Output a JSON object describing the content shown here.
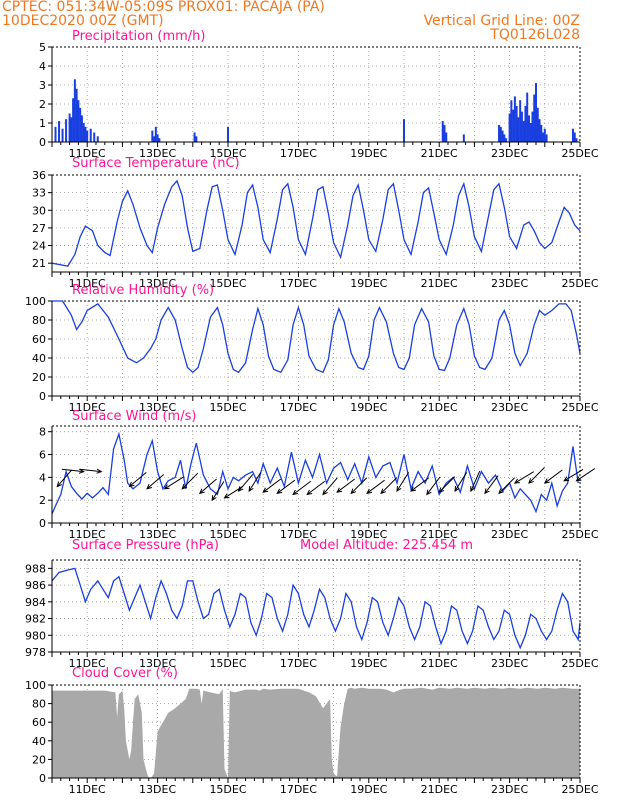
{
  "header": {
    "line1": "CPTEC:   051:34W-05:09S   PROX01: PACAJA (PA)",
    "line2_left": "10DEC2020 00Z (GMT)",
    "line2_right": "Vertical Grid Line: 00Z",
    "line3_right": "TQ0126L028"
  },
  "colors": {
    "header": "#f07820",
    "panel_title": "#ff1493",
    "series": "#1a3fe0",
    "cloud": "#a9a9a9",
    "axis": "#000000"
  },
  "x_axis": {
    "start_day": 10,
    "end_day": 25,
    "tick_labels": [
      "11DEC",
      "13DEC",
      "15DEC",
      "17DEC",
      "19DEC",
      "21DEC",
      "23DEC",
      "25DEC"
    ],
    "tick_days": [
      11,
      13,
      15,
      17,
      19,
      21,
      23,
      25
    ]
  },
  "chart_data": [
    {
      "id": "precip",
      "type": "bar",
      "title": "Precipitation (mm/h)",
      "ylim": [
        0,
        5
      ],
      "yticks": [
        0,
        1,
        2,
        3,
        4,
        5
      ],
      "grid": true,
      "unit": "mm/h",
      "x": [
        10.1,
        10.2,
        10.3,
        10.4,
        10.5,
        10.55,
        10.6,
        10.65,
        10.7,
        10.75,
        10.8,
        10.85,
        10.9,
        10.95,
        11.0,
        11.1,
        11.2,
        11.3,
        12.85,
        12.9,
        12.95,
        13.0,
        13.05,
        14.05,
        14.1,
        15.0,
        20.0,
        21.1,
        21.15,
        21.2,
        21.7,
        22.7,
        22.75,
        22.8,
        22.85,
        22.9,
        23.0,
        23.05,
        23.1,
        23.15,
        23.2,
        23.25,
        23.3,
        23.35,
        23.4,
        23.45,
        23.5,
        23.55,
        23.6,
        23.65,
        23.7,
        23.75,
        23.8,
        23.85,
        23.9,
        23.95,
        24.0,
        24.05,
        24.8,
        24.85,
        24.9
      ],
      "values": [
        0.8,
        1.1,
        0.7,
        1.2,
        1.5,
        1.3,
        2.3,
        3.3,
        2.8,
        2.2,
        1.8,
        1.4,
        1.0,
        0.8,
        0.6,
        0.7,
        0.5,
        0.3,
        0.6,
        0.3,
        0.8,
        0.4,
        0.2,
        0.5,
        0.3,
        0.8,
        1.2,
        1.1,
        0.9,
        0.5,
        0.4,
        0.9,
        0.8,
        0.6,
        0.4,
        0.2,
        1.5,
        2.2,
        1.7,
        2.4,
        1.9,
        1.3,
        2.2,
        1.6,
        1.1,
        1.9,
        2.6,
        1.4,
        1.0,
        1.6,
        2.5,
        3.1,
        1.8,
        1.2,
        0.9,
        0.5,
        0.7,
        0.4,
        0.7,
        0.5,
        0.2
      ]
    },
    {
      "id": "temp",
      "type": "line",
      "title": "Surface Temperature (nC)",
      "ylim": [
        19.5,
        36
      ],
      "yticks": [
        21,
        24,
        27,
        30,
        33,
        36
      ],
      "grid": true,
      "unit": "nC",
      "x": [
        10.0,
        10.45,
        10.65,
        10.8,
        10.95,
        11.15,
        11.3,
        11.5,
        11.65,
        11.85,
        12.0,
        12.15,
        12.3,
        12.5,
        12.7,
        12.85,
        13.0,
        13.2,
        13.4,
        13.55,
        13.7,
        13.85,
        14.0,
        14.2,
        14.4,
        14.55,
        14.7,
        14.85,
        15.0,
        15.2,
        15.4,
        15.55,
        15.7,
        15.85,
        16.0,
        16.2,
        16.4,
        16.55,
        16.7,
        16.85,
        17.0,
        17.2,
        17.4,
        17.55,
        17.7,
        17.85,
        18.0,
        18.2,
        18.4,
        18.55,
        18.7,
        18.85,
        19.0,
        19.2,
        19.4,
        19.55,
        19.7,
        19.85,
        20.0,
        20.2,
        20.4,
        20.55,
        20.7,
        20.85,
        21.0,
        21.2,
        21.4,
        21.55,
        21.7,
        21.85,
        22.0,
        22.2,
        22.4,
        22.55,
        22.7,
        22.85,
        23.0,
        23.2,
        23.4,
        23.55,
        23.7,
        23.85,
        24.0,
        24.2,
        24.4,
        24.55,
        24.7,
        24.85,
        25.0
      ],
      "values": [
        21.0,
        20.5,
        22.5,
        25.5,
        27.3,
        26.5,
        24.0,
        22.8,
        22.3,
        28.0,
        31.5,
        33.3,
        31.0,
        27.0,
        24.0,
        22.8,
        27.0,
        31.0,
        34.0,
        35.0,
        32.5,
        27.0,
        23.0,
        23.5,
        30.0,
        34.0,
        34.3,
        30.0,
        25.0,
        22.5,
        27.5,
        33.0,
        34.3,
        30.5,
        25.0,
        22.8,
        28.5,
        33.5,
        34.5,
        30.5,
        25.0,
        22.5,
        28.5,
        33.5,
        34.0,
        29.5,
        24.5,
        22.0,
        27.5,
        32.5,
        34.3,
        30.0,
        25.0,
        23.0,
        28.5,
        33.5,
        34.5,
        30.0,
        25.0,
        22.5,
        28.0,
        33.0,
        33.8,
        29.5,
        25.0,
        22.5,
        27.5,
        32.5,
        34.5,
        30.5,
        25.5,
        23.0,
        29.0,
        33.5,
        34.5,
        30.5,
        25.5,
        23.5,
        27.5,
        28.0,
        26.5,
        24.5,
        23.5,
        24.5,
        28.0,
        30.5,
        29.5,
        27.5,
        26.5
      ]
    },
    {
      "id": "rh",
      "type": "line",
      "title": "Relative Humidity (%)",
      "ylim": [
        0,
        100
      ],
      "yticks": [
        0,
        20,
        40,
        60,
        80,
        100
      ],
      "grid": true,
      "unit": "%",
      "x": [
        10.0,
        10.3,
        10.55,
        10.7,
        10.85,
        11.0,
        11.3,
        11.6,
        11.9,
        12.15,
        12.4,
        12.6,
        12.8,
        12.95,
        13.1,
        13.3,
        13.5,
        13.7,
        13.85,
        14.0,
        14.15,
        14.3,
        14.5,
        14.7,
        14.85,
        15.0,
        15.15,
        15.3,
        15.5,
        15.7,
        15.85,
        16.0,
        16.15,
        16.3,
        16.5,
        16.7,
        16.85,
        17.0,
        17.15,
        17.3,
        17.5,
        17.7,
        17.85,
        18.0,
        18.15,
        18.3,
        18.5,
        18.7,
        18.85,
        19.0,
        19.15,
        19.3,
        19.5,
        19.7,
        19.85,
        20.0,
        20.15,
        20.3,
        20.5,
        20.7,
        20.85,
        21.0,
        21.15,
        21.3,
        21.5,
        21.7,
        21.85,
        22.0,
        22.15,
        22.3,
        22.5,
        22.7,
        22.85,
        23.0,
        23.15,
        23.3,
        23.5,
        23.7,
        23.85,
        24.0,
        24.2,
        24.4,
        24.6,
        24.75,
        24.9,
        25.0
      ],
      "values": [
        100,
        100,
        85,
        70,
        78,
        90,
        97,
        83,
        60,
        40,
        35,
        40,
        50,
        60,
        80,
        93,
        80,
        50,
        30,
        25,
        30,
        50,
        83,
        93,
        75,
        45,
        28,
        25,
        35,
        70,
        92,
        75,
        42,
        28,
        25,
        38,
        75,
        93,
        75,
        42,
        28,
        25,
        38,
        75,
        92,
        78,
        45,
        30,
        28,
        42,
        80,
        93,
        78,
        45,
        30,
        28,
        40,
        75,
        92,
        78,
        42,
        28,
        27,
        40,
        75,
        92,
        75,
        42,
        30,
        28,
        40,
        80,
        90,
        75,
        45,
        32,
        45,
        75,
        90,
        85,
        90,
        97,
        97,
        90,
        65,
        45
      ]
    },
    {
      "id": "wind",
      "type": "line",
      "title": "Surface Wind (m/s)",
      "ylim": [
        0,
        8.5
      ],
      "yticks": [
        0,
        2,
        4,
        6,
        8
      ],
      "grid": true,
      "unit": "m/s",
      "x": [
        10.0,
        10.1,
        10.25,
        10.4,
        10.55,
        10.7,
        10.85,
        11.0,
        11.15,
        11.3,
        11.45,
        11.6,
        11.75,
        11.9,
        12.05,
        12.15,
        12.3,
        12.5,
        12.7,
        12.85,
        13.0,
        13.15,
        13.3,
        13.5,
        13.65,
        13.8,
        13.95,
        14.1,
        14.3,
        14.5,
        14.7,
        14.85,
        15.0,
        15.15,
        15.3,
        15.5,
        15.7,
        15.85,
        16.0,
        16.2,
        16.4,
        16.6,
        16.8,
        17.0,
        17.2,
        17.4,
        17.6,
        17.8,
        18.0,
        18.2,
        18.4,
        18.6,
        18.8,
        19.0,
        19.2,
        19.4,
        19.6,
        19.8,
        20.0,
        20.2,
        20.4,
        20.6,
        20.8,
        21.0,
        21.2,
        21.4,
        21.6,
        21.8,
        22.0,
        22.2,
        22.4,
        22.6,
        22.8,
        23.0,
        23.15,
        23.3,
        23.45,
        23.6,
        23.75,
        23.9,
        24.05,
        24.2,
        24.35,
        24.5,
        24.65,
        24.8,
        24.95
      ],
      "values": [
        0.8,
        1.5,
        2.5,
        4.5,
        3.2,
        2.6,
        2.1,
        2.6,
        2.2,
        2.6,
        3.1,
        2.5,
        6.5,
        7.8,
        5.5,
        3.5,
        3.0,
        3.5,
        6.0,
        7.2,
        4.5,
        3.0,
        3.7,
        4.0,
        5.5,
        3.0,
        5.2,
        7.0,
        4.2,
        3.0,
        2.5,
        4.5,
        3.0,
        4.0,
        3.7,
        4.2,
        4.5,
        3.5,
        5.2,
        3.5,
        4.8,
        3.2,
        6.2,
        3.5,
        5.5,
        4.0,
        6.0,
        3.5,
        4.8,
        5.3,
        3.8,
        5.2,
        3.5,
        5.8,
        4.0,
        5.0,
        5.3,
        3.5,
        6.0,
        3.0,
        4.5,
        3.5,
        5.0,
        2.5,
        3.5,
        4.0,
        2.7,
        5.0,
        3.0,
        4.5,
        3.5,
        4.2,
        2.8,
        3.5,
        2.2,
        3.0,
        2.5,
        2.0,
        1.0,
        2.5,
        2.0,
        3.5,
        1.5,
        2.8,
        3.5,
        6.7,
        3.5
      ]
    },
    {
      "id": "pres",
      "type": "line",
      "title": "Surface Pressure (hPa)",
      "subtitle": "Model Altitude: 225.454 m",
      "ylim": [
        978,
        989
      ],
      "yticks": [
        978,
        980,
        982,
        984,
        986,
        988
      ],
      "grid": true,
      "unit": "hPa",
      "x": [
        10.0,
        10.2,
        10.45,
        10.65,
        10.8,
        10.95,
        11.1,
        11.3,
        11.45,
        11.6,
        11.75,
        11.9,
        12.05,
        12.2,
        12.35,
        12.5,
        12.65,
        12.8,
        12.95,
        13.1,
        13.25,
        13.4,
        13.55,
        13.7,
        13.85,
        14.0,
        14.15,
        14.3,
        14.45,
        14.6,
        14.75,
        14.9,
        15.05,
        15.2,
        15.35,
        15.5,
        15.65,
        15.8,
        15.95,
        16.1,
        16.25,
        16.4,
        16.55,
        16.7,
        16.85,
        17.0,
        17.15,
        17.3,
        17.45,
        17.6,
        17.75,
        17.9,
        18.05,
        18.2,
        18.35,
        18.5,
        18.65,
        18.8,
        18.95,
        19.1,
        19.25,
        19.4,
        19.55,
        19.7,
        19.85,
        20.0,
        20.15,
        20.3,
        20.45,
        20.6,
        20.75,
        20.9,
        21.05,
        21.2,
        21.35,
        21.5,
        21.65,
        21.8,
        21.95,
        22.1,
        22.25,
        22.4,
        22.55,
        22.7,
        22.85,
        23.0,
        23.15,
        23.3,
        23.45,
        23.6,
        23.75,
        23.9,
        24.05,
        24.2,
        24.35,
        24.5,
        24.65,
        24.8,
        24.95,
        25.0
      ],
      "values": [
        986.5,
        987.5,
        987.8,
        988.0,
        986.0,
        984.0,
        985.5,
        986.5,
        985.5,
        984.5,
        986.5,
        987.0,
        985.0,
        983.0,
        984.5,
        986.0,
        984.0,
        982.0,
        984.5,
        986.5,
        985.0,
        983.0,
        982.0,
        983.5,
        986.5,
        986.5,
        984.0,
        982.0,
        982.5,
        985.0,
        985.5,
        983.0,
        981.0,
        982.5,
        985.0,
        984.5,
        981.5,
        980.0,
        982.0,
        985.0,
        984.5,
        982.0,
        980.5,
        982.5,
        986.0,
        985.0,
        982.5,
        981.0,
        983.0,
        985.5,
        984.5,
        982.0,
        980.5,
        982.0,
        985.0,
        984.0,
        981.0,
        979.5,
        981.5,
        984.5,
        984.0,
        981.5,
        980.0,
        982.0,
        984.5,
        983.5,
        981.0,
        979.5,
        981.0,
        984.0,
        983.5,
        981.0,
        979.0,
        980.5,
        983.5,
        983.0,
        980.5,
        979.0,
        980.5,
        983.5,
        983.0,
        981.0,
        979.5,
        980.5,
        983.0,
        982.5,
        980.0,
        978.5,
        980.0,
        982.5,
        982.0,
        980.5,
        979.5,
        980.5,
        983.0,
        985.0,
        984.0,
        980.5,
        979.5,
        981.5
      ]
    },
    {
      "id": "cloud",
      "type": "area",
      "title": "Cloud Cover (%)",
      "ylim": [
        0,
        100
      ],
      "yticks": [
        0,
        20,
        40,
        60,
        80,
        100
      ],
      "grid": true,
      "unit": "%",
      "x": [
        10.0,
        10.5,
        11.0,
        11.5,
        11.8,
        11.85,
        11.9,
        12.0,
        12.05,
        12.1,
        12.2,
        12.25,
        12.3,
        12.35,
        12.45,
        12.55,
        12.6,
        12.7,
        12.75,
        12.8,
        12.85,
        12.9,
        13.0,
        13.3,
        13.5,
        13.8,
        13.9,
        14.1,
        14.2,
        14.25,
        14.3,
        14.5,
        14.75,
        14.85,
        14.9,
        15.0,
        15.05,
        15.1,
        15.2,
        15.5,
        15.8,
        15.9,
        16.0,
        16.2,
        16.5,
        16.8,
        17.0,
        17.3,
        17.5,
        17.7,
        17.9,
        17.95,
        18.0,
        18.05,
        18.1,
        18.15,
        18.2,
        18.3,
        18.4,
        18.5,
        18.6,
        18.8,
        19.0,
        19.3,
        19.5,
        19.7,
        19.9,
        20.0,
        20.2,
        20.5,
        20.8,
        21.0,
        21.3,
        21.5,
        21.8,
        22.0,
        22.3,
        22.5,
        22.8,
        23.0,
        23.3,
        23.5,
        23.8,
        24.0,
        24.3,
        24.5,
        24.8,
        25.0
      ],
      "values": [
        94,
        94,
        94,
        94,
        92,
        65,
        90,
        94,
        75,
        40,
        20,
        30,
        60,
        85,
        90,
        70,
        20,
        5,
        0,
        0,
        2,
        5,
        50,
        70,
        75,
        85,
        96,
        96,
        95,
        80,
        94,
        92,
        90,
        96,
        10,
        0,
        94,
        93,
        92,
        95,
        95,
        94,
        96,
        95,
        96,
        96,
        96,
        92,
        88,
        75,
        85,
        20,
        5,
        3,
        2,
        30,
        55,
        80,
        96,
        97,
        96,
        97,
        96,
        96,
        95,
        92,
        95,
        96,
        96,
        97,
        95,
        97,
        96,
        97,
        96,
        97,
        96,
        97,
        96,
        97,
        96,
        97,
        96,
        97,
        96,
        97,
        96,
        96
      ]
    }
  ],
  "wind_vectors": {
    "description": "Wind direction arrows overlaid on Surface Wind panel",
    "days": [
      10.15,
      10.9,
      11.4,
      12.2,
      12.7,
      13.2,
      13.7,
      14.2,
      14.55,
      14.9,
      15.3,
      15.6,
      16.0,
      16.4,
      16.85,
      17.25,
      17.7,
      18.1,
      18.5,
      18.95,
      19.35,
      19.8,
      20.2,
      20.65,
      21.0,
      21.45,
      21.9,
      22.3,
      22.7,
      23.15,
      23.55,
      24.0,
      24.55,
      24.9
    ],
    "levels": [
      3.2,
      4.5,
      4.5,
      3.2,
      3.0,
      3.0,
      3.0,
      2.6,
      2.0,
      2.2,
      2.8,
      2.8,
      2.7,
      2.6,
      2.5,
      2.5,
      2.5,
      2.7,
      2.6,
      2.6,
      2.6,
      2.8,
      2.8,
      2.5,
      2.7,
      2.8,
      2.8,
      2.6,
      2.6,
      3.5,
      3.5,
      3.5,
      3.7,
      3.7
    ],
    "u": [
      0.7,
      -0.9,
      -0.9,
      0.6,
      0.7,
      0.8,
      0.6,
      0.7,
      0.5,
      0.8,
      0.6,
      0.5,
      0.8,
      0.8,
      0.8,
      0.8,
      0.6,
      0.8,
      0.7,
      0.8,
      0.7,
      0.5,
      0.8,
      0.6,
      0.7,
      0.5,
      0.4,
      0.6,
      0.7,
      0.5,
      0.4,
      0.4,
      0.5,
      0.3
    ],
    "v": [
      0.8,
      0.1,
      0.1,
      0.5,
      0.6,
      0.5,
      0.6,
      0.6,
      0.8,
      0.5,
      0.7,
      0.8,
      0.6,
      0.6,
      0.6,
      0.6,
      0.7,
      0.6,
      0.7,
      0.6,
      0.7,
      0.8,
      0.6,
      0.8,
      0.7,
      0.8,
      0.9,
      0.8,
      0.7,
      0.3,
      0.4,
      0.3,
      0.3,
      0.2
    ]
  }
}
